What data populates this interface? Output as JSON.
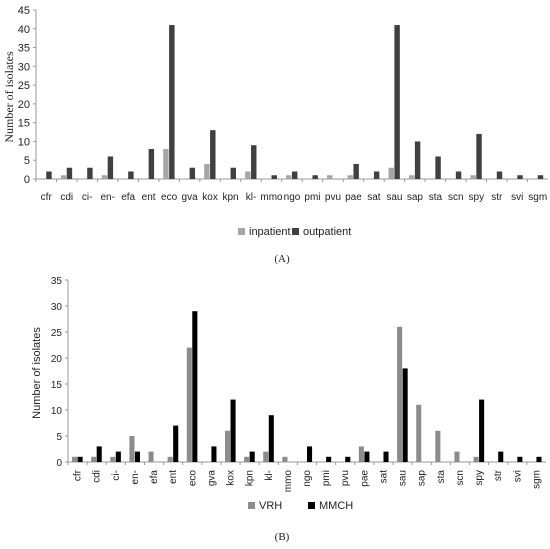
{
  "chart_data": [
    {
      "type": "bar",
      "panel": "(A)",
      "categories": [
        "cfr",
        "cdi",
        "ci-",
        "en-",
        "efa",
        "ent",
        "eco",
        "gva",
        "kox",
        "kpn",
        "kl-",
        "mmo",
        "ngo",
        "pmi",
        "pvu",
        "pae",
        "sat",
        "sau",
        "sap",
        "sta",
        "scn",
        "spy",
        "str",
        "svi",
        "sgm"
      ],
      "series": [
        {
          "name": "inpatient",
          "color": "#a6a6a6",
          "values": [
            0,
            1,
            0,
            1,
            0,
            0,
            8,
            0,
            4,
            0,
            2,
            0,
            1,
            0,
            1,
            1,
            0,
            3,
            1,
            0,
            0,
            1,
            0,
            0,
            0
          ]
        },
        {
          "name": "outpatient",
          "color": "#404040",
          "values": [
            2,
            3,
            3,
            6,
            2,
            8,
            41,
            3,
            13,
            3,
            9,
            1,
            2,
            1,
            0,
            4,
            2,
            41,
            10,
            6,
            2,
            12,
            2,
            1,
            1
          ]
        }
      ],
      "ylabel": "Number of isolates",
      "xlabel": "",
      "ylim": [
        0,
        45
      ],
      "yticks": [
        0,
        5,
        10,
        15,
        20,
        25,
        30,
        35,
        40,
        45
      ],
      "grid": false,
      "legend": "bottom"
    },
    {
      "type": "bar",
      "panel": "(B)",
      "categories": [
        "cfr",
        "cdi",
        "ci-",
        "en-",
        "efa",
        "ent",
        "eco",
        "gva",
        "kox",
        "kpn",
        "kl-",
        "mmo",
        "ngo",
        "pmi",
        "pvu",
        "pae",
        "sat",
        "sau",
        "sap",
        "sta",
        "scn",
        "spy",
        "str",
        "svi",
        "sgm"
      ],
      "series": [
        {
          "name": "VRH",
          "color": "#8c8c8c",
          "values": [
            1,
            1,
            1,
            5,
            2,
            1,
            22,
            0,
            6,
            1,
            2,
            1,
            0,
            0,
            0,
            3,
            0,
            26,
            11,
            6,
            2,
            1,
            0,
            0,
            0
          ]
        },
        {
          "name": "MMCH",
          "color": "#000000",
          "values": [
            1,
            3,
            2,
            2,
            0,
            7,
            29,
            3,
            12,
            2,
            9,
            0,
            3,
            1,
            1,
            2,
            2,
            18,
            0,
            0,
            0,
            12,
            2,
            1,
            1
          ]
        }
      ],
      "ylabel": "Number of isolates",
      "xlabel": "",
      "ylim": [
        0,
        35
      ],
      "yticks": [
        0,
        5,
        10,
        15,
        20,
        25,
        30,
        35
      ],
      "grid": false,
      "legend": "bottom"
    }
  ]
}
